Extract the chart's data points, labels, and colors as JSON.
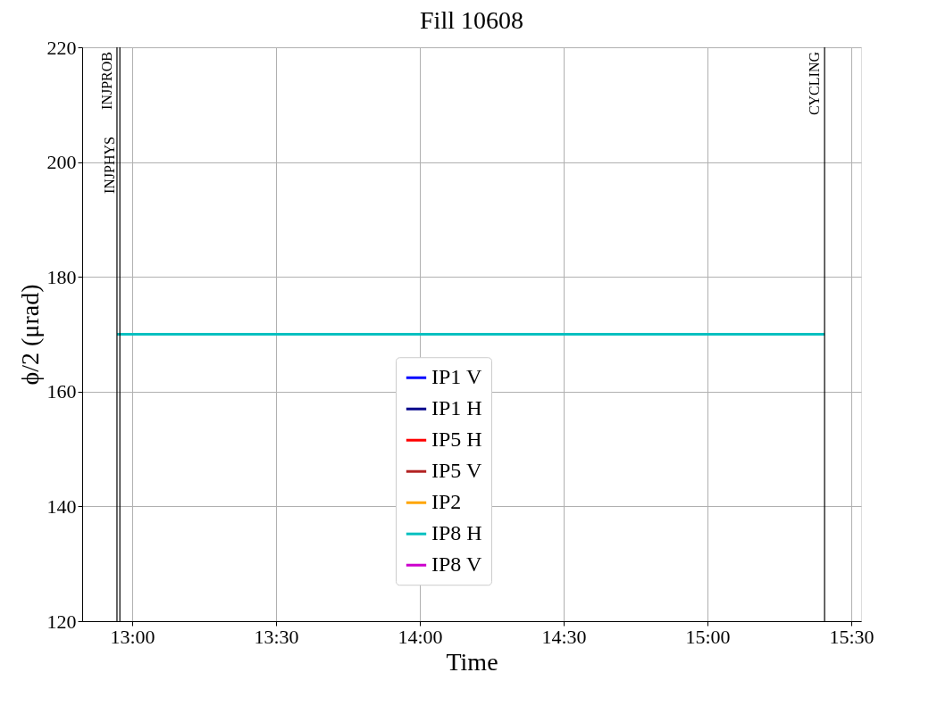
{
  "chart_data": {
    "type": "line",
    "title": "Fill 10608",
    "xlabel": "Time",
    "ylabel": "ϕ/2 (μrad)",
    "xlim": [
      12.826,
      15.534
    ],
    "ylim": [
      120,
      220
    ],
    "xticks": [
      {
        "value": 13,
        "label": "13:00"
      },
      {
        "value": 13.5,
        "label": "13:30"
      },
      {
        "value": 14,
        "label": "14:00"
      },
      {
        "value": 14.5,
        "label": "14:30"
      },
      {
        "value": 15,
        "label": "15:00"
      },
      {
        "value": 15.5,
        "label": "15:30"
      }
    ],
    "yticks": [
      120,
      140,
      160,
      180,
      200,
      220
    ],
    "x": [
      12.947,
      15.407
    ],
    "series": [
      {
        "name": "IP1 V",
        "color": "#0000ff",
        "values": [
          null,
          null
        ]
      },
      {
        "name": "IP1 H",
        "color": "#00008b",
        "values": [
          null,
          null
        ]
      },
      {
        "name": "IP5 H",
        "color": "#ff0000",
        "values": [
          null,
          null
        ]
      },
      {
        "name": "IP5 V",
        "color": "#b22222",
        "values": [
          null,
          null
        ]
      },
      {
        "name": "IP2",
        "color": "#ffa500",
        "values": [
          null,
          null
        ]
      },
      {
        "name": "IP8 H",
        "color": "#00c0c0",
        "values": [
          170,
          170
        ]
      },
      {
        "name": "IP8 V",
        "color": "#cc00cc",
        "values": [
          null,
          null
        ]
      }
    ],
    "ref_lines": [
      {
        "axis": "x",
        "value": 12.947,
        "label": "INJPROB",
        "color": "#000000"
      },
      {
        "axis": "x",
        "value": 12.957,
        "label": "INJPHYS",
        "color": "#000000"
      },
      {
        "axis": "x",
        "value": 15.407,
        "label": "CYCLING",
        "color": "#000000"
      }
    ],
    "grid": true,
    "legend": "bottom",
    "marker": "none",
    "line_style": "solid"
  }
}
